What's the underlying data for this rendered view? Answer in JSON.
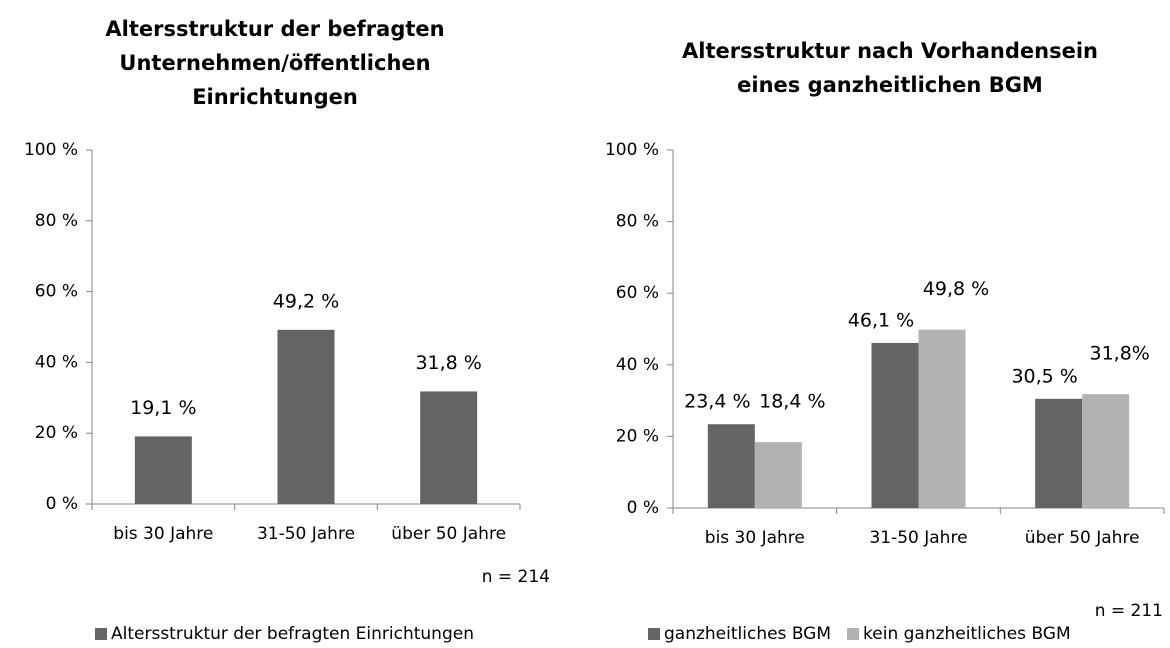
{
  "chart_data": [
    {
      "type": "bar",
      "title": [
        "Altersstruktur der befragten",
        "Unternehmen/öffentlichen",
        "Einrichtungen"
      ],
      "categories": [
        "bis 30 Jahre",
        "31-50 Jahre",
        "über 50 Jahre"
      ],
      "series": [
        {
          "name": "Altersstruktur der befragten Einrichtungen",
          "color": "#646464",
          "values": [
            19.1,
            49.2,
            31.8
          ],
          "value_labels": [
            "19,1 %",
            "49,2 %",
            "31,8 %"
          ]
        }
      ],
      "ylim": [
        0,
        100
      ],
      "yticks": [
        {
          "value": 0,
          "label": "0 %"
        },
        {
          "value": 20,
          "label": "20 %"
        },
        {
          "value": 40,
          "label": "40 %"
        },
        {
          "value": 60,
          "label": "60 %"
        },
        {
          "value": 80,
          "label": "80 %"
        },
        {
          "value": 100,
          "label": "100 %"
        }
      ],
      "note": "n = 214",
      "legend": "bottom"
    },
    {
      "type": "bar",
      "title": [
        "Altersstruktur nach Vorhandensein",
        "eines ganzheitlichen BGM"
      ],
      "categories": [
        "bis 30 Jahre",
        "31-50 Jahre",
        "über 50 Jahre"
      ],
      "series": [
        {
          "name": "ganzheitliches BGM",
          "color": "#646464",
          "values": [
            23.4,
            46.1,
            30.5
          ],
          "value_labels": [
            "23,4 %",
            "46,1 %",
            "30,5 %"
          ]
        },
        {
          "name": "kein ganzheitliches BGM",
          "color": "#b2b2b2",
          "values": [
            18.4,
            49.8,
            31.8
          ],
          "value_labels": [
            "18,4 %",
            "49,8 %",
            "31,8%"
          ]
        }
      ],
      "ylim": [
        0,
        100
      ],
      "yticks": [
        {
          "value": 0,
          "label": "0 %"
        },
        {
          "value": 20,
          "label": "20 %"
        },
        {
          "value": 40,
          "label": "40 %"
        },
        {
          "value": 60,
          "label": "60 %"
        },
        {
          "value": 80,
          "label": "80 %"
        },
        {
          "value": 100,
          "label": "100 %"
        }
      ],
      "note": "n = 211",
      "legend": "bottom"
    }
  ]
}
